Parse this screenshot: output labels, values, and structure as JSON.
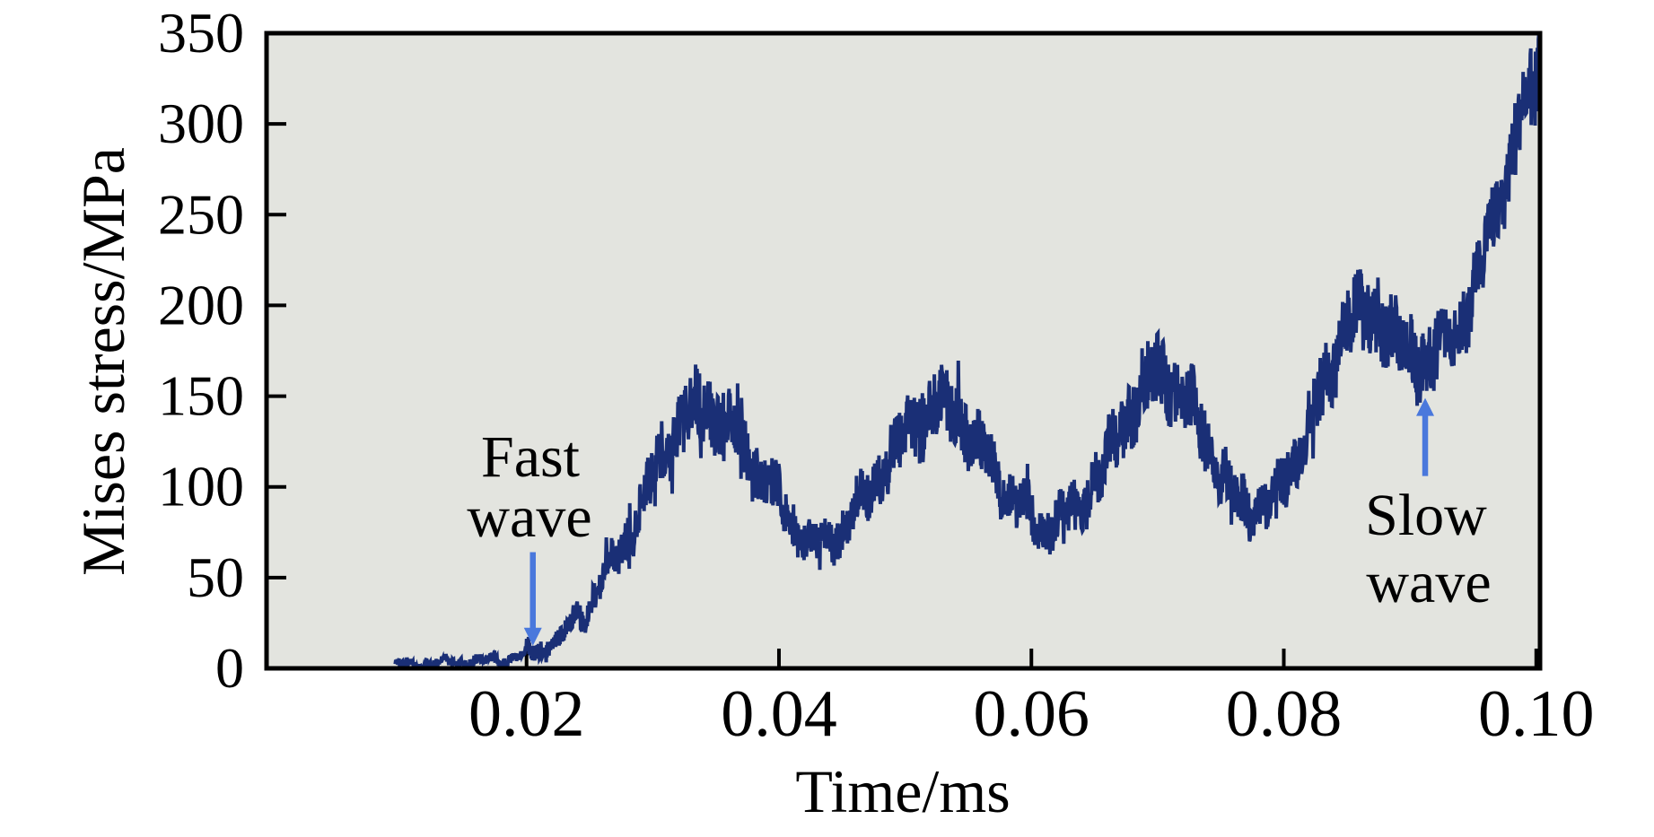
{
  "figure": {
    "description": "Noisy simulation curve of Mises stress versus time showing fast and slow stress-wave arrivals"
  },
  "chart_data": {
    "type": "line",
    "title": "",
    "xlabel": "Time/ms",
    "ylabel": "Mises stress/MPa",
    "xlim": [
      -0.0006,
      0.1003
    ],
    "ylim": [
      0,
      350
    ],
    "x_ticks": [
      0.02,
      0.04,
      0.06,
      0.08,
      0.1
    ],
    "x_tick_labels": [
      "0.02",
      "0.04",
      "0.06",
      "0.08",
      "0.10"
    ],
    "y_ticks": [
      0,
      50,
      100,
      150,
      200,
      250,
      300,
      350
    ],
    "y_tick_labels": [
      "0",
      "50",
      "100",
      "150",
      "200",
      "250",
      "300",
      "350"
    ],
    "grid": false,
    "legend": "none",
    "colors": {
      "curve": "#1a2f76",
      "plot_bg": "#e3e4df",
      "axis": "#000000",
      "arrow": "#4a78dc",
      "page_bg": "#ffffff"
    },
    "series": [
      {
        "name": "Mises stress",
        "color": "#1a2f76",
        "noise_band_mpa": 15,
        "envelope_points": [
          [
            0.0096,
            2
          ],
          [
            0.012,
            3
          ],
          [
            0.014,
            3.5
          ],
          [
            0.016,
            4
          ],
          [
            0.018,
            5
          ],
          [
            0.0195,
            7
          ],
          [
            0.021,
            10
          ],
          [
            0.0225,
            16
          ],
          [
            0.024,
            26
          ],
          [
            0.0255,
            42
          ],
          [
            0.027,
            60
          ],
          [
            0.0285,
            80
          ],
          [
            0.03,
            104
          ],
          [
            0.0315,
            126
          ],
          [
            0.0325,
            138
          ],
          [
            0.0335,
            145
          ],
          [
            0.035,
            141
          ],
          [
            0.0365,
            130
          ],
          [
            0.038,
            114
          ],
          [
            0.04,
            93
          ],
          [
            0.0415,
            76
          ],
          [
            0.0425,
            68
          ],
          [
            0.0435,
            70
          ],
          [
            0.045,
            78
          ],
          [
            0.047,
            96
          ],
          [
            0.049,
            118
          ],
          [
            0.051,
            138
          ],
          [
            0.0525,
            147
          ],
          [
            0.054,
            143
          ],
          [
            0.0555,
            128
          ],
          [
            0.057,
            110
          ],
          [
            0.0585,
            94
          ],
          [
            0.06,
            83
          ],
          [
            0.061,
            79
          ],
          [
            0.0625,
            82
          ],
          [
            0.064,
            93
          ],
          [
            0.066,
            115
          ],
          [
            0.068,
            145
          ],
          [
            0.0695,
            160
          ],
          [
            0.0705,
            162
          ],
          [
            0.072,
            152
          ],
          [
            0.0735,
            132
          ],
          [
            0.075,
            108
          ],
          [
            0.076,
            95
          ],
          [
            0.0765,
            90
          ],
          [
            0.078,
            88
          ],
          [
            0.0795,
            96
          ],
          [
            0.081,
            118
          ],
          [
            0.083,
            152
          ],
          [
            0.0845,
            182
          ],
          [
            0.0855,
            197
          ],
          [
            0.0865,
            197
          ],
          [
            0.088,
            188
          ],
          [
            0.0895,
            177
          ],
          [
            0.0905,
            171
          ],
          [
            0.0915,
            171
          ],
          [
            0.093,
            180
          ],
          [
            0.0945,
            198
          ],
          [
            0.096,
            230
          ],
          [
            0.0975,
            268
          ],
          [
            0.099,
            310
          ],
          [
            0.1002,
            338
          ]
        ]
      }
    ],
    "features": {
      "fast_wave_arrival_ms": 0.021,
      "slow_wave_arrival_ms": 0.091,
      "peaks_ms_mpa": [
        [
          0.034,
          145
        ],
        [
          0.053,
          147
        ],
        [
          0.07,
          162
        ],
        [
          0.086,
          198
        ]
      ],
      "troughs_ms_mpa": [
        [
          0.043,
          68
        ],
        [
          0.061,
          79
        ],
        [
          0.077,
          90
        ],
        [
          0.091,
          171
        ]
      ],
      "final_ms_mpa": [
        0.1,
        338
      ]
    },
    "annotations": [
      {
        "id": "fast-wave",
        "lines": [
          "Fast",
          "wave"
        ],
        "text_x_ms": 0.0203,
        "line_y_mpa": [
          114.7,
          81.6
        ],
        "arrow": {
          "x_ms": 0.0205,
          "from_mpa": 64,
          "to_mpa": 12.5,
          "direction": "down"
        }
      },
      {
        "id": "slow-wave",
        "lines": [
          "Slow",
          "wave"
        ],
        "text_x_ms": 0.0913,
        "line_y_mpa": [
          82.6,
          45.5
        ],
        "arrow": {
          "x_ms": 0.0912,
          "from_mpa": 106,
          "to_mpa": 149,
          "direction": "up"
        }
      }
    ]
  }
}
